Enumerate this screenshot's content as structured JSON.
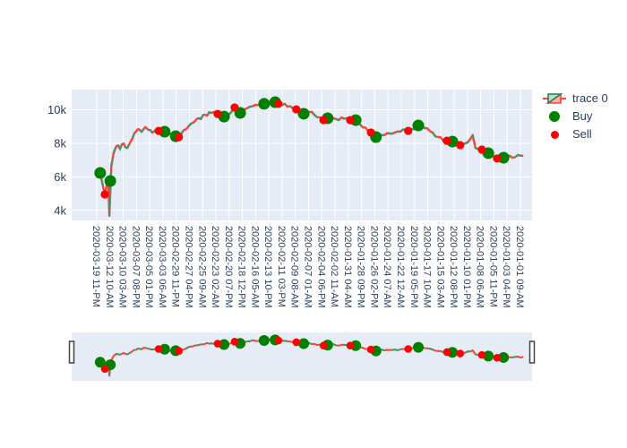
{
  "legend": {
    "trace0_label": "trace 0",
    "buy_label": "Buy",
    "sell_label": "Sell"
  },
  "colors": {
    "plot_background": "#E5ECF6",
    "grid": "#FFFFFF",
    "tick_text": "#2a3f5f",
    "candle_increasing": "#3D9970",
    "candle_decreasing": "#FF4136",
    "buy_marker": "#008000",
    "sell_marker": "#FF0000",
    "slider_handle_border": "#444444"
  },
  "chart_data": {
    "type": "line",
    "subtype": "candlestick-with-signals",
    "title": "",
    "xlabel": "",
    "ylabel": "",
    "grid": true,
    "legend_position": "right-top",
    "rangeslider": true,
    "y_axis": {
      "tick_labels": [
        "4k",
        "6k",
        "8k",
        "10k"
      ],
      "tick_values_k": [
        4,
        6,
        8,
        10
      ],
      "range_k": [
        3.4,
        11.2
      ]
    },
    "x_axis": {
      "tick_labels": [
        "2020-03-19 11-PM",
        "2020-03-12 10-AM",
        "2020-03-10 03-AM",
        "2020-03-07 08-PM",
        "2020-03-05 01-PM",
        "2020-03-03 06-AM",
        "2020-02-29 11-PM",
        "2020-02-27 04-PM",
        "2020-02-25 09-AM",
        "2020-02-23 02-AM",
        "2020-02-20 07-PM",
        "2020-02-18 12-PM",
        "2020-02-16 05-AM",
        "2020-02-13 10-PM",
        "2020-02-11 03-PM",
        "2020-02-09 08-AM",
        "2020-02-07 01-AM",
        "2020-02-04 06-PM",
        "2020-02-02 11-AM",
        "2020-01-31 04-AM",
        "2020-01-28 09-PM",
        "2020-01-26 02-PM",
        "2020-01-24 07-AM",
        "2020-01-22 12-AM",
        "2020-01-19 05-PM",
        "2020-01-17 10-AM",
        "2020-01-15 03-AM",
        "2020-01-12 08-PM",
        "2020-01-10 01-PM",
        "2020-01-08 06-AM",
        "2020-01-05 11-PM",
        "2020-01-03 04-PM",
        "2020-01-01 09-AM"
      ]
    },
    "series": [
      {
        "name": "trace 0",
        "type": "candlestick-line",
        "increasing_color": "#3D9970",
        "decreasing_color": "#FF4136",
        "points_frac_priceK": [
          [
            0.056,
            6.05
          ],
          [
            0.062,
            6.23
          ],
          [
            0.066,
            5.7
          ],
          [
            0.072,
            4.95
          ],
          [
            0.078,
            5.75
          ],
          [
            0.08,
            5.4
          ],
          [
            0.082,
            3.67
          ],
          [
            0.086,
            6.6
          ],
          [
            0.091,
            7.41
          ],
          [
            0.097,
            7.83
          ],
          [
            0.105,
            7.67
          ],
          [
            0.113,
            7.99
          ],
          [
            0.121,
            7.73
          ],
          [
            0.128,
            8.1
          ],
          [
            0.136,
            8.58
          ],
          [
            0.144,
            8.85
          ],
          [
            0.152,
            8.69
          ],
          [
            0.16,
            8.96
          ],
          [
            0.167,
            8.8
          ],
          [
            0.175,
            8.64
          ],
          [
            0.183,
            8.8
          ],
          [
            0.191,
            8.74
          ],
          [
            0.198,
            8.69
          ],
          [
            0.208,
            8.53
          ],
          [
            0.218,
            8.48
          ],
          [
            0.228,
            8.37
          ],
          [
            0.237,
            8.53
          ],
          [
            0.249,
            8.85
          ],
          [
            0.263,
            9.22
          ],
          [
            0.276,
            9.49
          ],
          [
            0.29,
            9.7
          ],
          [
            0.303,
            9.81
          ],
          [
            0.317,
            9.7
          ],
          [
            0.329,
            9.54
          ],
          [
            0.34,
            9.7
          ],
          [
            0.352,
            10.08
          ],
          [
            0.364,
            9.86
          ],
          [
            0.375,
            10.02
          ],
          [
            0.387,
            10.18
          ],
          [
            0.399,
            10.29
          ],
          [
            0.41,
            10.35
          ],
          [
            0.422,
            10.45
          ],
          [
            0.434,
            10.51
          ],
          [
            0.446,
            10.35
          ],
          [
            0.457,
            10.29
          ],
          [
            0.469,
            10.18
          ],
          [
            0.481,
            10.08
          ],
          [
            0.492,
            9.92
          ],
          [
            0.504,
            9.76
          ],
          [
            0.516,
            9.86
          ],
          [
            0.527,
            9.7
          ],
          [
            0.539,
            9.54
          ],
          [
            0.551,
            9.44
          ],
          [
            0.562,
            9.54
          ],
          [
            0.574,
            9.44
          ],
          [
            0.586,
            9.54
          ],
          [
            0.597,
            9.49
          ],
          [
            0.609,
            9.38
          ],
          [
            0.621,
            9.22
          ],
          [
            0.632,
            8.96
          ],
          [
            0.644,
            8.74
          ],
          [
            0.656,
            8.53
          ],
          [
            0.667,
            8.42
          ],
          [
            0.679,
            8.48
          ],
          [
            0.691,
            8.58
          ],
          [
            0.702,
            8.64
          ],
          [
            0.714,
            8.69
          ],
          [
            0.726,
            8.74
          ],
          [
            0.737,
            8.85
          ],
          [
            0.749,
            9.01
          ],
          [
            0.761,
            9.06
          ],
          [
            0.772,
            8.9
          ],
          [
            0.784,
            8.64
          ],
          [
            0.796,
            8.37
          ],
          [
            0.807,
            8.15
          ],
          [
            0.819,
            8.1
          ],
          [
            0.831,
            8.05
          ],
          [
            0.842,
            7.94
          ],
          [
            0.854,
            7.99
          ],
          [
            0.866,
            8.26
          ],
          [
            0.871,
            8.48
          ],
          [
            0.877,
            7.73
          ],
          [
            0.889,
            7.62
          ],
          [
            0.899,
            7.46
          ],
          [
            0.909,
            7.35
          ],
          [
            0.918,
            7.19
          ],
          [
            0.928,
            7.09
          ],
          [
            0.938,
            7.14
          ],
          [
            0.948,
            7.25
          ],
          [
            0.957,
            7.14
          ],
          [
            0.969,
            7.3
          ],
          [
            0.981,
            7.25
          ]
        ]
      },
      {
        "name": "Buy",
        "type": "scatter",
        "color": "#008000",
        "marker_size_px": 13,
        "points_frac_priceK": [
          [
            0.062,
            6.23
          ],
          [
            0.084,
            5.75
          ],
          [
            0.202,
            8.69
          ],
          [
            0.226,
            8.42
          ],
          [
            0.331,
            9.59
          ],
          [
            0.366,
            9.81
          ],
          [
            0.418,
            10.35
          ],
          [
            0.442,
            10.45
          ],
          [
            0.504,
            9.76
          ],
          [
            0.556,
            9.49
          ],
          [
            0.617,
            9.38
          ],
          [
            0.661,
            8.37
          ],
          [
            0.753,
            9.06
          ],
          [
            0.827,
            8.1
          ],
          [
            0.905,
            7.41
          ],
          [
            0.938,
            7.14
          ]
        ]
      },
      {
        "name": "Sell",
        "type": "scatter",
        "color": "#FF0000",
        "marker_size_px": 9,
        "points_frac_priceK": [
          [
            0.072,
            4.95
          ],
          [
            0.189,
            8.74
          ],
          [
            0.233,
            8.37
          ],
          [
            0.317,
            9.75
          ],
          [
            0.354,
            10.13
          ],
          [
            0.449,
            10.35
          ],
          [
            0.488,
            10.02
          ],
          [
            0.547,
            9.38
          ],
          [
            0.605,
            9.38
          ],
          [
            0.65,
            8.64
          ],
          [
            0.731,
            8.74
          ],
          [
            0.815,
            8.15
          ],
          [
            0.844,
            7.89
          ],
          [
            0.891,
            7.62
          ],
          [
            0.924,
            7.09
          ]
        ]
      }
    ]
  }
}
